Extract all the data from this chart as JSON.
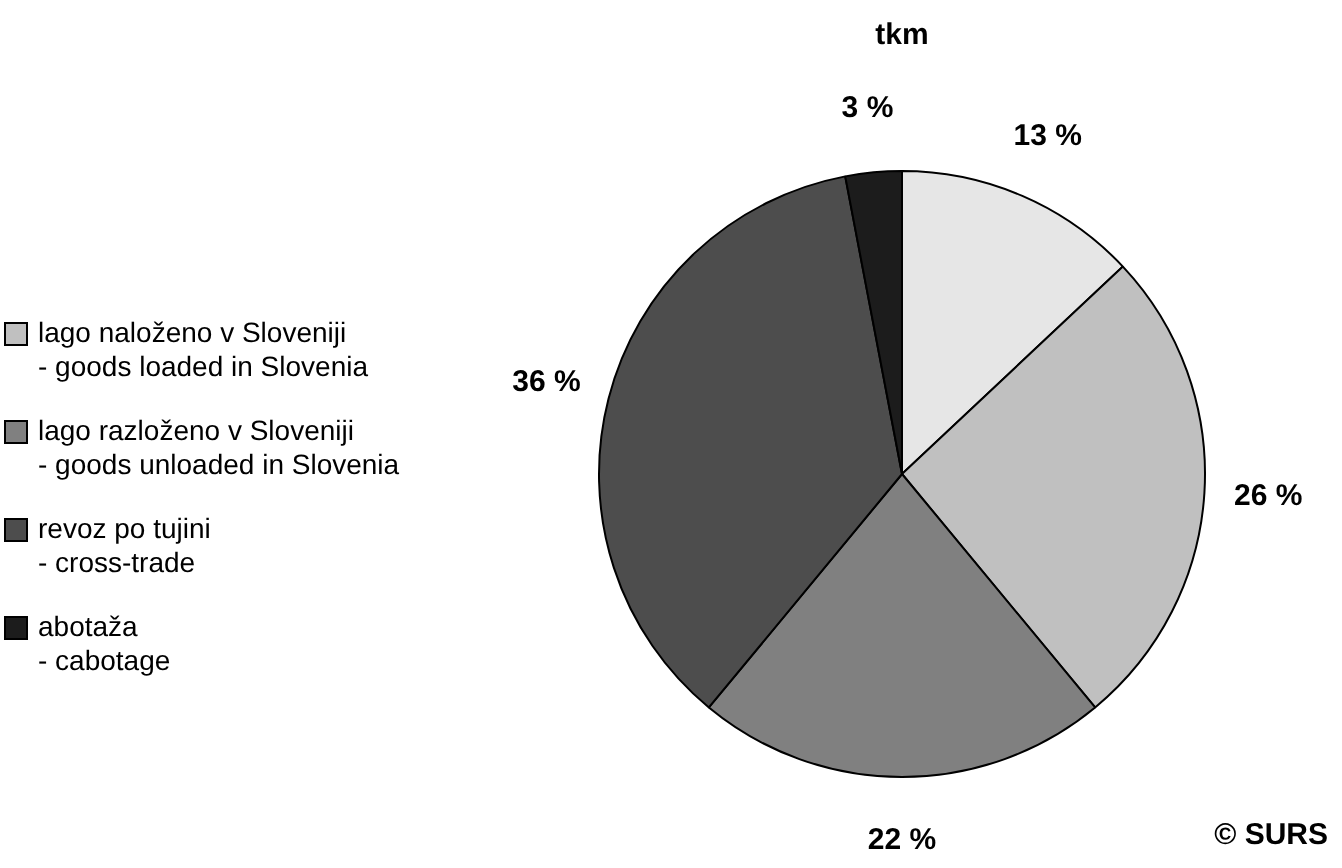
{
  "chart_data": {
    "type": "pie",
    "title": "tkm",
    "categories": [
      null,
      "lago naloženo v Sloveniji\n- goods loaded in Slovenia",
      "lago razloženo v Sloveniji\n- goods unloaded in Slovenia",
      "revoz po tujini\n- cross-trade",
      "abotaža\n- cabotage"
    ],
    "values": [
      13,
      26,
      22,
      36,
      3
    ],
    "colors": [
      "#e6e6e6",
      "#c0c0c0",
      "#808080",
      "#4d4d4d",
      "#1c1c1c"
    ],
    "value_labels": [
      "13 %",
      "26 %",
      "22 %",
      "36 %",
      "3 %"
    ],
    "legend": "left",
    "annotations": [
      "© SURS"
    ]
  }
}
